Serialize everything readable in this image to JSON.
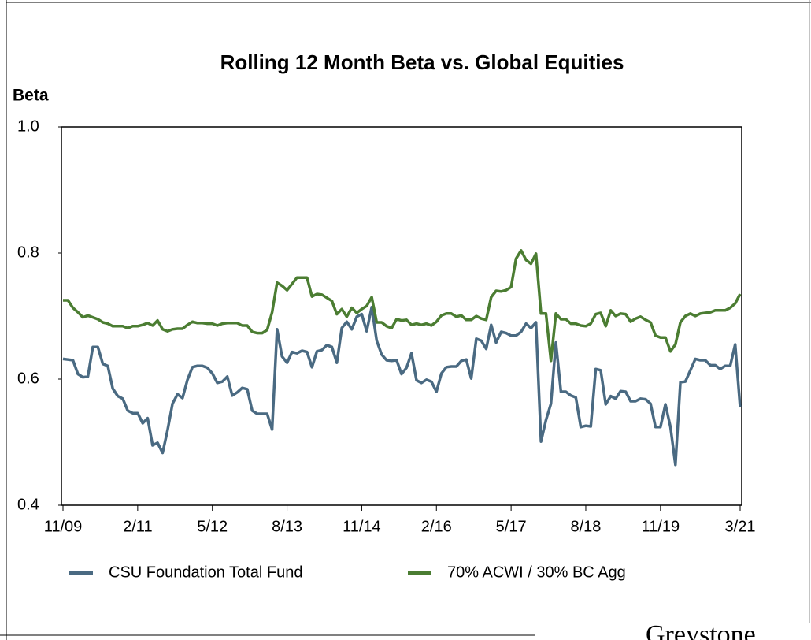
{
  "chart_data": {
    "type": "line",
    "title": "Rolling 12 Month Beta vs. Global Equities",
    "y_label": "Beta",
    "logo": "Greystone",
    "categories": [
      "11/09",
      null,
      null,
      null,
      null,
      null,
      null,
      null,
      null,
      null,
      null,
      null,
      null,
      null,
      null,
      "2/11",
      null,
      null,
      null,
      null,
      null,
      null,
      null,
      null,
      null,
      null,
      null,
      null,
      null,
      null,
      "5/12",
      null,
      null,
      null,
      null,
      null,
      null,
      null,
      null,
      null,
      null,
      null,
      null,
      null,
      null,
      "8/13",
      null,
      null,
      null,
      null,
      null,
      null,
      null,
      null,
      null,
      null,
      null,
      null,
      null,
      null,
      "11/14",
      null,
      null,
      null,
      null,
      null,
      null,
      null,
      null,
      null,
      null,
      null,
      null,
      null,
      null,
      "2/16",
      null,
      null,
      null,
      null,
      null,
      null,
      null,
      null,
      null,
      null,
      null,
      null,
      null,
      null,
      "5/17",
      null,
      null,
      null,
      null,
      null,
      null,
      null,
      null,
      null,
      null,
      null,
      null,
      null,
      null,
      "8/18",
      null,
      null,
      null,
      null,
      null,
      null,
      null,
      null,
      null,
      null,
      null,
      null,
      null,
      null,
      "11/19",
      null,
      null,
      null,
      null,
      null,
      null,
      null,
      null,
      null,
      null,
      null,
      null,
      null,
      null,
      null,
      "3/21"
    ],
    "series": [
      {
        "name": "CSU Foundation Total Fund",
        "color": "#4a6a82",
        "values": [
          0.632,
          0.631,
          0.63,
          0.608,
          0.603,
          0.604,
          0.651,
          0.651,
          0.624,
          0.621,
          0.585,
          0.573,
          0.569,
          0.55,
          0.546,
          0.546,
          0.53,
          0.538,
          0.495,
          0.499,
          0.483,
          0.519,
          0.561,
          0.576,
          0.57,
          0.599,
          0.619,
          0.621,
          0.621,
          0.618,
          0.609,
          0.594,
          0.596,
          0.604,
          0.574,
          0.579,
          0.586,
          0.584,
          0.55,
          0.545,
          0.545,
          0.545,
          0.52,
          0.679,
          0.636,
          0.626,
          0.643,
          0.641,
          0.645,
          0.643,
          0.619,
          0.644,
          0.646,
          0.654,
          0.651,
          0.626,
          0.681,
          0.691,
          0.679,
          0.699,
          0.703,
          0.676,
          0.714,
          0.661,
          0.639,
          0.63,
          0.629,
          0.63,
          0.608,
          0.618,
          0.641,
          0.598,
          0.594,
          0.599,
          0.596,
          0.58,
          0.609,
          0.619,
          0.62,
          0.62,
          0.629,
          0.631,
          0.601,
          0.664,
          0.661,
          0.648,
          0.686,
          0.658,
          0.675,
          0.673,
          0.669,
          0.669,
          0.675,
          0.688,
          0.681,
          0.69,
          0.501,
          0.535,
          0.561,
          0.658,
          0.58,
          0.58,
          0.574,
          0.571,
          0.524,
          0.526,
          0.525,
          0.616,
          0.614,
          0.56,
          0.573,
          0.569,
          0.581,
          0.58,
          0.565,
          0.565,
          0.569,
          0.568,
          0.561,
          0.524,
          0.524,
          0.56,
          0.524,
          0.464,
          0.595,
          0.596,
          0.614,
          0.632,
          0.63,
          0.63,
          0.622,
          0.622,
          0.616,
          0.621,
          0.621,
          0.655,
          0.555
        ]
      },
      {
        "name": "70% ACWI / 30% BC Agg",
        "color": "#4b7d32",
        "values": [
          0.725,
          0.725,
          0.713,
          0.706,
          0.698,
          0.701,
          0.698,
          0.695,
          0.69,
          0.688,
          0.684,
          0.684,
          0.684,
          0.681,
          0.684,
          0.684,
          0.686,
          0.689,
          0.685,
          0.693,
          0.679,
          0.676,
          0.679,
          0.68,
          0.68,
          0.686,
          0.691,
          0.689,
          0.689,
          0.688,
          0.688,
          0.685,
          0.688,
          0.689,
          0.689,
          0.689,
          0.685,
          0.685,
          0.675,
          0.673,
          0.673,
          0.678,
          0.706,
          0.753,
          0.748,
          0.741,
          0.751,
          0.761,
          0.761,
          0.761,
          0.731,
          0.735,
          0.734,
          0.729,
          0.724,
          0.703,
          0.711,
          0.699,
          0.713,
          0.705,
          0.711,
          0.716,
          0.73,
          0.69,
          0.69,
          0.684,
          0.681,
          0.695,
          0.693,
          0.694,
          0.686,
          0.688,
          0.686,
          0.688,
          0.685,
          0.691,
          0.701,
          0.704,
          0.704,
          0.699,
          0.701,
          0.694,
          0.694,
          0.7,
          0.696,
          0.694,
          0.73,
          0.74,
          0.739,
          0.741,
          0.746,
          0.791,
          0.804,
          0.789,
          0.783,
          0.799,
          0.704,
          0.704,
          0.629,
          0.704,
          0.695,
          0.695,
          0.688,
          0.688,
          0.685,
          0.684,
          0.688,
          0.703,
          0.705,
          0.684,
          0.709,
          0.7,
          0.704,
          0.703,
          0.691,
          0.696,
          0.699,
          0.694,
          0.69,
          0.669,
          0.666,
          0.666,
          0.644,
          0.655,
          0.69,
          0.7,
          0.704,
          0.7,
          0.704,
          0.705,
          0.706,
          0.709,
          0.709,
          0.709,
          0.713,
          0.72,
          0.735
        ]
      }
    ],
    "ylim": [
      0.4,
      1.0
    ],
    "yticks": [
      0.4,
      0.6,
      0.8,
      {
        "value": 1.0,
        "label": "1.0"
      }
    ]
  }
}
